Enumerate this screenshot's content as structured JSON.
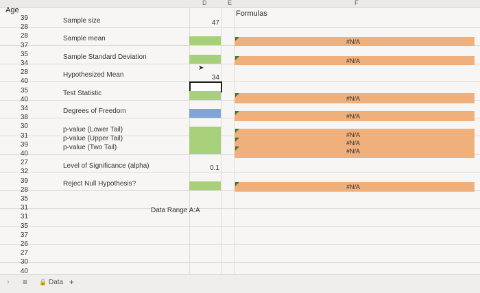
{
  "columns": {
    "D": "D",
    "E": "E",
    "F": "F"
  },
  "age_header": "Age",
  "ages": [
    "39",
    "28",
    "28",
    "37",
    "35",
    "34",
    "28",
    "40",
    "35",
    "40",
    "34",
    "38",
    "30",
    "31",
    "39",
    "40",
    "27",
    "32",
    "39",
    "28",
    "35",
    "31",
    "31",
    "35",
    "37",
    "26",
    "27",
    "30",
    "40"
  ],
  "labels": {
    "sample_size": "Sample size",
    "sample_mean": "Sample mean",
    "sample_sd": "Sample Standard Deviation",
    "hyp_mean": "Hypothesized Mean",
    "test_stat": "Test Statistic",
    "dof": "Degrees of Freedom",
    "p_lower": "p-value (Lower Tail)",
    "p_upper": "p-value (Upper Tail)",
    "p_two": "p-value (Two Tail)",
    "alpha": "Level of Significance (alpha)",
    "reject": "Reject Null Hypothesis?",
    "data_range": "Data Range A:A"
  },
  "values": {
    "sample_size": "47",
    "hyp_mean": "34",
    "alpha": "0.1"
  },
  "formulas_header": "Formulas",
  "formula_results": {
    "sample_mean": "#N/A",
    "sample_sd": "#N/A",
    "test_stat": "#N/A",
    "dof": "#N/A",
    "p_lower": "#N/A",
    "p_upper": "#N/A",
    "p_two": "#N/A",
    "reject": "#N/A"
  },
  "sheet_tab": "Data",
  "add_sheet": "+",
  "menu_glyph": "≡",
  "nav_glyph": "›",
  "colors": {
    "green": "#a8cf7a",
    "blue": "#7fa4d6",
    "orange": "#efb07c"
  }
}
